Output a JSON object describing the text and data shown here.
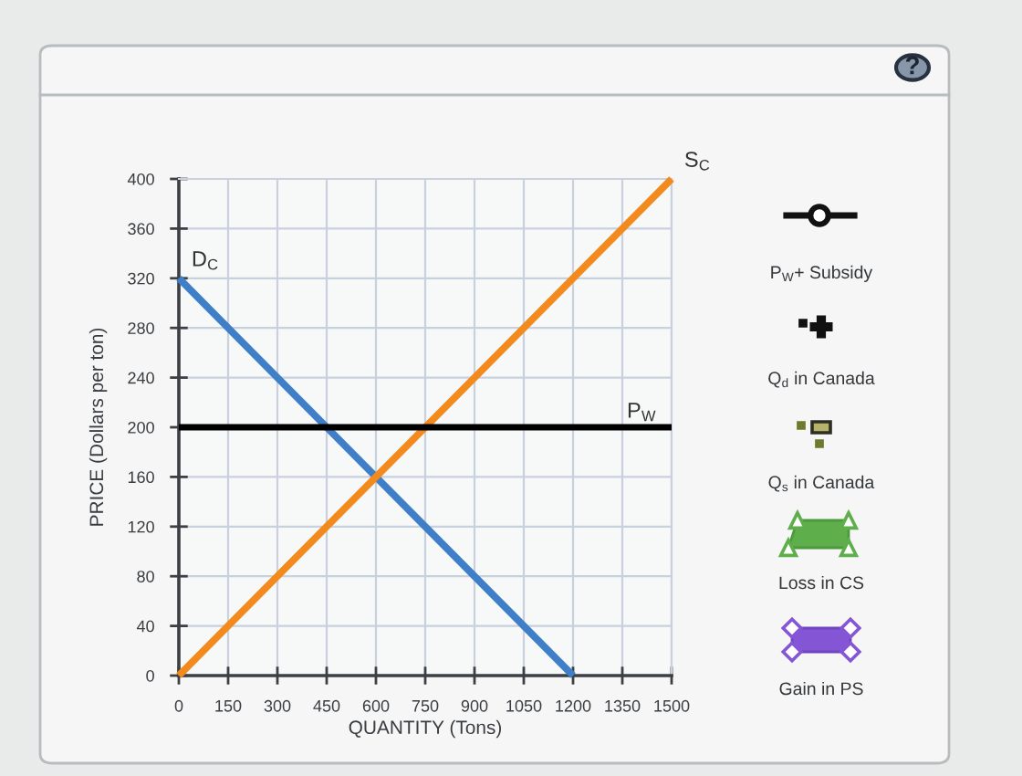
{
  "chart_data": {
    "type": "line",
    "xlabel": "QUANTITY (Tons)",
    "ylabel": "PRICE (Dollars per ton)",
    "series": [
      {
        "name": "D$_{C}$",
        "color": "#3f7fc8",
        "x": [
          0,
          1200
        ],
        "values": [
          320,
          0
        ]
      },
      {
        "name": "S$_{C}$",
        "color": "#f28a1e",
        "x": [
          0,
          1500
        ],
        "values": [
          0,
          400
        ]
      }
    ],
    "ref_lines": [
      {
        "axis": "y",
        "value": 200,
        "label": "P$_{W}$",
        "color": "#000000"
      }
    ],
    "xlim": [
      0,
      1500
    ],
    "ylim": [
      0,
      400
    ],
    "xticks": [
      0,
      150,
      300,
      450,
      600,
      750,
      900,
      1050,
      1200,
      1350,
      1500
    ],
    "yticks": [
      0,
      40,
      80,
      120,
      160,
      200,
      240,
      280,
      320,
      360,
      400
    ],
    "grid": true,
    "legend": false,
    "marker": "none",
    "line_style": "solid",
    "annotations": [
      "?",
      "P$_{W}$+ Subsidy",
      "Q$_{d}$ in Canada",
      "Q$_{s}$ in Canada",
      "Loss in CS",
      "Gain in PS"
    ]
  }
}
